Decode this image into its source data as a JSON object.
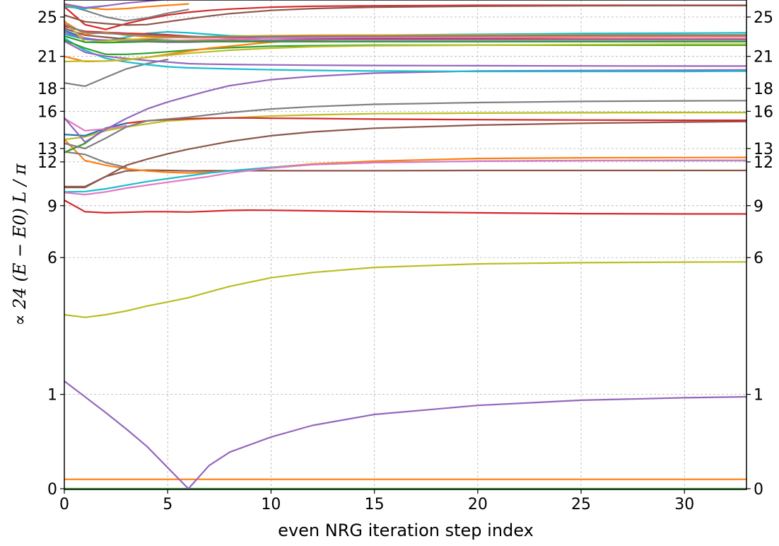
{
  "chart_data": {
    "type": "line",
    "title": "",
    "xlabel": "even NRG iteration step index",
    "ylabel": "∝ 24 (E − E0) L / π",
    "xlim": [
      0,
      33
    ],
    "ylim": [
      -0.1,
      26
    ],
    "grid": true,
    "y_scale": "quadratic (tick spacing ∝ √y)",
    "xticks": [
      "0",
      "5",
      "10",
      "15",
      "20",
      "25",
      "30"
    ],
    "yticks": [
      "0",
      "1",
      "6",
      "9",
      "12",
      "13",
      "16",
      "18",
      "21",
      "25"
    ],
    "series": [
      {
        "color": "#2ca02c",
        "x": [
          0,
          33
        ],
        "y": [
          0,
          0
        ]
      },
      {
        "color": "#ff7f0e",
        "x": [
          0,
          33
        ],
        "y": [
          0.01,
          0.01
        ]
      },
      {
        "color": "#9467bd",
        "x": [
          0,
          1,
          2,
          3,
          4,
          5,
          6,
          7,
          8,
          10,
          12,
          15,
          20,
          25,
          30,
          33
        ],
        "y": [
          1.3,
          0.95,
          0.65,
          0.4,
          0.2,
          0.05,
          0.0,
          0.06,
          0.15,
          0.3,
          0.45,
          0.62,
          0.78,
          0.88,
          0.93,
          0.95
        ]
      },
      {
        "color": "#bcbd22",
        "x": [
          0,
          1,
          2,
          3,
          4,
          5,
          6,
          7,
          8,
          10,
          12,
          15,
          20,
          25,
          30,
          33
        ],
        "y": [
          3.4,
          3.3,
          3.4,
          3.55,
          3.75,
          3.92,
          4.1,
          4.35,
          4.6,
          5.0,
          5.25,
          5.5,
          5.68,
          5.74,
          5.77,
          5.78
        ]
      },
      {
        "color": "#d62728",
        "x": [
          0,
          1,
          2,
          3,
          4,
          5,
          6,
          7,
          8,
          9,
          10,
          12,
          15,
          20,
          25,
          30,
          33
        ],
        "y": [
          9.35,
          8.62,
          8.55,
          8.58,
          8.62,
          8.62,
          8.6,
          8.65,
          8.7,
          8.72,
          8.71,
          8.68,
          8.62,
          8.55,
          8.5,
          8.48,
          8.48
        ]
      },
      {
        "color": "#8c564b",
        "x": [
          0,
          1,
          2,
          3,
          4,
          5,
          6,
          7,
          8,
          10,
          12,
          15,
          20,
          25,
          30,
          33
        ],
        "y": [
          10.25,
          10.25,
          10.95,
          11.35,
          11.4,
          11.38,
          11.35,
          11.36,
          11.36,
          11.36,
          11.36,
          11.36,
          11.38,
          11.38,
          11.38,
          11.38
        ]
      },
      {
        "color": "#ff7f0e",
        "x": [
          0,
          1,
          2,
          3,
          4,
          5,
          6,
          7,
          8,
          10,
          12,
          15,
          20,
          25,
          30,
          33
        ],
        "y": [
          13.7,
          12.1,
          11.75,
          11.5,
          11.35,
          11.25,
          11.2,
          11.25,
          11.35,
          11.6,
          11.85,
          12.05,
          12.25,
          12.3,
          12.32,
          12.33
        ]
      },
      {
        "color": "#7f7f7f",
        "x": [
          0,
          1,
          2,
          3
        ],
        "y": [
          12.75,
          12.55,
          11.95,
          11.6
        ]
      },
      {
        "color": "#bcbd22",
        "x": [
          0,
          1,
          2,
          3,
          4,
          5,
          6,
          7,
          8,
          10,
          12,
          15,
          20,
          25,
          30,
          33
        ],
        "y": [
          13.7,
          13.9,
          14.4,
          14.7,
          14.95,
          15.2,
          15.3,
          15.4,
          15.45,
          15.6,
          15.7,
          15.8,
          15.85,
          15.88,
          15.9,
          15.9
        ]
      },
      {
        "color": "#17becf",
        "x": [
          0,
          1,
          2,
          3,
          4,
          5,
          6,
          7,
          8,
          10,
          12,
          15,
          20,
          25,
          30,
          33
        ],
        "y": [
          9.9,
          9.92,
          10.1,
          10.35,
          10.6,
          10.8,
          11.0,
          11.2,
          11.35,
          11.6,
          11.8,
          11.95,
          12.05,
          12.1,
          12.1,
          12.1
        ]
      },
      {
        "color": "#e377c2",
        "x": [
          0,
          1,
          2,
          3,
          4,
          5,
          6,
          7,
          8,
          10,
          12,
          15,
          20,
          25,
          30,
          33
        ],
        "y": [
          9.85,
          9.72,
          9.9,
          10.15,
          10.35,
          10.55,
          10.75,
          10.95,
          11.2,
          11.55,
          11.8,
          11.95,
          12.05,
          12.1,
          12.12,
          12.12
        ]
      },
      {
        "color": "#8c564b",
        "x": [
          0,
          1,
          2,
          3,
          4,
          5,
          6,
          7,
          8,
          10,
          12,
          15,
          20,
          25,
          30,
          33
        ],
        "y": [
          10.2,
          10.2,
          10.95,
          11.75,
          12.2,
          12.6,
          12.95,
          13.25,
          13.55,
          14.0,
          14.3,
          14.6,
          14.85,
          15.0,
          15.1,
          15.15
        ]
      },
      {
        "color": "#d62728",
        "x": [
          0,
          1,
          2,
          3,
          4,
          5,
          6,
          7,
          8,
          9,
          10,
          12,
          15,
          20,
          25,
          30,
          33
        ],
        "y": [
          12.7,
          13.4,
          14.6,
          15.0,
          15.2,
          15.3,
          15.38,
          15.42,
          15.44,
          15.44,
          15.42,
          15.4,
          15.35,
          15.3,
          15.27,
          15.25,
          15.25
        ]
      },
      {
        "color": "#1f77b4",
        "x": [
          0,
          1,
          2,
          3
        ],
        "y": [
          14.1,
          14.0,
          14.6,
          15.0
        ]
      },
      {
        "color": "#2ca02c",
        "x": [
          0,
          1,
          2
        ],
        "y": [
          12.7,
          13.4,
          14.6
        ]
      },
      {
        "color": "#e377c2",
        "x": [
          0,
          1,
          2,
          3
        ],
        "y": [
          15.4,
          14.4,
          14.55,
          14.8
        ]
      },
      {
        "color": "#9467bd",
        "x": [
          0,
          1,
          2,
          3,
          4,
          5,
          6,
          7,
          8,
          10,
          12,
          15,
          20,
          25,
          30,
          33
        ],
        "y": [
          15.45,
          13.5,
          14.5,
          15.4,
          16.2,
          16.8,
          17.3,
          17.8,
          18.25,
          18.8,
          19.1,
          19.4,
          19.6,
          19.65,
          19.68,
          19.7
        ]
      },
      {
        "color": "#7f7f7f",
        "x": [
          0,
          1,
          2,
          3,
          4,
          5,
          6,
          7,
          8,
          10,
          12,
          15,
          20,
          25,
          30,
          33
        ],
        "y": [
          13.4,
          13.0,
          13.8,
          14.7,
          15.2,
          15.35,
          15.5,
          15.7,
          15.9,
          16.2,
          16.4,
          16.6,
          16.75,
          16.85,
          16.9,
          16.92
        ]
      },
      {
        "color": "#7f7f7f",
        "x": [
          0,
          1,
          2,
          3,
          4,
          5
        ],
        "y": [
          18.5,
          18.2,
          19.0,
          19.8,
          20.3,
          20.7
        ]
      },
      {
        "color": "#17becf",
        "x": [
          0,
          1,
          2,
          3,
          4,
          5,
          6,
          7,
          8,
          10,
          12,
          15,
          20,
          25,
          30,
          33
        ],
        "y": [
          22.8,
          21.6,
          20.8,
          20.45,
          20.2,
          20.0,
          19.9,
          19.85,
          19.8,
          19.72,
          19.66,
          19.6,
          19.56,
          19.56,
          19.56,
          19.58
        ]
      },
      {
        "color": "#9467bd",
        "x": [
          0,
          1,
          2,
          3,
          4,
          5,
          6,
          7,
          8,
          10,
          12,
          15,
          20,
          25,
          30,
          33
        ],
        "y": [
          22.5,
          21.4,
          21.0,
          20.8,
          20.6,
          20.45,
          20.3,
          20.25,
          20.22,
          20.18,
          20.15,
          20.12,
          20.1,
          20.08,
          20.07,
          20.07
        ]
      },
      {
        "color": "#2ca02c",
        "x": [
          0,
          1,
          2,
          3,
          4,
          5,
          6,
          7,
          8,
          10,
          12,
          15,
          20,
          25,
          30,
          33
        ],
        "y": [
          22.6,
          21.8,
          21.2,
          21.2,
          21.3,
          21.45,
          21.6,
          21.75,
          21.85,
          22.0,
          22.05,
          22.1,
          22.1,
          22.1,
          22.1,
          22.1
        ]
      },
      {
        "color": "#ff7f0e",
        "x": [
          0,
          1,
          2,
          3,
          4,
          5,
          6,
          7,
          8,
          10,
          12,
          15,
          20,
          25,
          30,
          33
        ],
        "y": [
          21.0,
          20.5,
          20.55,
          20.65,
          20.9,
          21.2,
          21.5,
          21.8,
          22.0,
          22.4,
          22.6,
          22.75,
          22.85,
          22.9,
          22.92,
          22.93
        ]
      },
      {
        "color": "#bcbd22",
        "x": [
          0,
          1,
          2,
          3,
          4,
          5,
          6,
          7,
          8,
          10,
          12,
          15,
          20,
          25,
          30,
          33
        ],
        "y": [
          20.5,
          20.55,
          20.55,
          20.7,
          20.9,
          21.1,
          21.3,
          21.45,
          21.6,
          21.8,
          21.95,
          22.05,
          22.1,
          22.15,
          22.2,
          22.2
        ]
      },
      {
        "color": "#1f77b4",
        "x": [
          0,
          1,
          2,
          3,
          4,
          5,
          6,
          7,
          8,
          10,
          12,
          15,
          20,
          25,
          30,
          33
        ],
        "y": [
          23.6,
          22.8,
          22.55,
          22.6,
          22.65,
          22.6,
          22.55,
          22.5,
          22.48,
          22.45,
          22.45,
          22.45,
          22.45,
          22.45,
          22.45,
          22.45
        ]
      },
      {
        "color": "#17becf",
        "x": [
          0,
          1,
          2,
          3,
          4,
          5,
          6,
          7,
          8,
          10,
          12,
          15,
          20,
          25,
          30,
          33
        ],
        "y": [
          23.2,
          22.7,
          22.5,
          22.9,
          23.3,
          23.45,
          23.35,
          23.2,
          23.05,
          22.95,
          23.0,
          23.1,
          23.2,
          23.28,
          23.32,
          23.35
        ]
      },
      {
        "color": "#8c564b",
        "x": [
          0,
          1,
          2,
          3,
          4,
          5,
          6,
          7,
          8,
          10,
          12,
          15,
          20,
          25,
          30,
          33
        ],
        "y": [
          23.8,
          23.1,
          22.9,
          22.7,
          22.6,
          22.55,
          22.55,
          22.6,
          22.65,
          22.8,
          22.9,
          22.95,
          23.0,
          23.05,
          23.05,
          23.05
        ]
      },
      {
        "color": "#d62728",
        "x": [
          0,
          1,
          2,
          3,
          4,
          5,
          6,
          7,
          8,
          10,
          12,
          15,
          20,
          25,
          30,
          33
        ],
        "y": [
          24.0,
          23.5,
          23.4,
          23.3,
          23.25,
          23.15,
          23.0,
          22.9,
          22.85,
          22.8,
          22.78,
          22.75,
          22.72,
          22.7,
          22.7,
          22.7
        ]
      },
      {
        "color": "#e377c2",
        "x": [
          0,
          1,
          2,
          3,
          4,
          5,
          6,
          7,
          8,
          10,
          12,
          15,
          20,
          25,
          30,
          33
        ],
        "y": [
          24.3,
          22.7,
          22.6,
          22.55,
          22.5,
          22.55,
          22.6,
          22.65,
          22.7,
          22.8,
          22.85,
          22.9,
          22.92,
          22.95,
          22.95,
          22.95
        ]
      },
      {
        "color": "#9467bd",
        "x": [
          0,
          1,
          2,
          3,
          4,
          5,
          6,
          7,
          8,
          10,
          12,
          15,
          20,
          25,
          30,
          33
        ],
        "y": [
          23.4,
          22.7,
          22.6,
          22.5,
          22.45,
          22.4,
          22.4,
          22.45,
          22.5,
          22.6,
          22.65,
          22.65,
          22.65,
          22.65,
          22.65,
          22.65
        ]
      },
      {
        "color": "#bcbd22",
        "x": [
          0,
          1,
          2,
          3,
          4,
          5,
          6,
          7,
          8,
          10,
          12,
          15,
          20,
          25,
          30,
          33
        ],
        "y": [
          24.6,
          22.4,
          22.5,
          22.65,
          22.75,
          22.85,
          22.9,
          22.95,
          23.0,
          23.05,
          23.1,
          23.12,
          23.15,
          23.15,
          23.15,
          23.15
        ]
      },
      {
        "color": "#ff7f0e",
        "x": [
          0,
          1,
          2,
          3,
          4,
          5,
          6,
          7,
          8,
          10,
          12,
          15,
          20,
          25,
          30,
          33
        ],
        "y": [
          24.5,
          23.2,
          23.4,
          23.1,
          22.95,
          22.9,
          22.85,
          22.85,
          22.9,
          23.0,
          23.05,
          23.05,
          23.05,
          23.05,
          23.05,
          23.05
        ]
      },
      {
        "color": "#7f7f7f",
        "x": [
          0,
          1,
          2,
          3,
          4,
          5,
          6,
          7,
          8,
          10,
          12,
          15,
          20,
          25,
          30,
          33
        ],
        "y": [
          24.2,
          23.4,
          23.3,
          23.2,
          23.1,
          23.0,
          22.95,
          22.95,
          22.95,
          22.95,
          22.98,
          23.0,
          23.05,
          23.1,
          23.12,
          23.12
        ]
      },
      {
        "color": "#2ca02c",
        "x": [
          0,
          1,
          2,
          3,
          4,
          5,
          6,
          7,
          8,
          10,
          12,
          15,
          20,
          25,
          30,
          33
        ],
        "y": [
          23.0,
          22.4,
          22.35,
          22.4,
          22.45,
          22.45,
          22.45,
          22.45,
          22.45,
          22.45,
          22.45,
          22.45,
          22.45,
          22.45,
          22.45,
          22.45
        ]
      },
      {
        "color": "#d62728",
        "x": [
          0,
          1,
          2,
          3,
          4,
          5,
          6,
          7,
          8,
          10,
          12,
          15,
          20,
          25,
          30,
          33
        ],
        "y": [
          26.1,
          24.2,
          23.7,
          24.3,
          24.8,
          25.2,
          25.5,
          25.7,
          25.85,
          26.05,
          26.15,
          26.2,
          26.25,
          26.25,
          26.25,
          26.25
        ]
      },
      {
        "color": "#8c564b",
        "x": [
          0,
          1,
          2,
          3,
          4,
          5,
          6,
          7,
          8,
          10,
          12,
          15,
          20,
          25,
          30,
          33
        ],
        "y": [
          25.2,
          24.5,
          24.3,
          24.15,
          24.2,
          24.5,
          24.8,
          25.1,
          25.35,
          25.7,
          25.9,
          26.05,
          26.15,
          26.2,
          26.22,
          26.22
        ]
      },
      {
        "color": "#7f7f7f",
        "x": [
          0,
          1,
          2,
          3,
          4,
          5,
          6
        ],
        "y": [
          26.3,
          25.7,
          25.0,
          24.6,
          24.9,
          25.4,
          25.8
        ]
      },
      {
        "color": "#ff7f0e",
        "x": [
          0,
          1,
          2,
          3,
          4,
          5,
          6
        ],
        "y": [
          26.2,
          26.0,
          25.8,
          25.9,
          26.1,
          26.25,
          26.4
        ]
      },
      {
        "color": "#17becf",
        "x": [
          0,
          1,
          2
        ],
        "y": [
          26.1,
          25.9,
          26.2
        ]
      },
      {
        "color": "#9467bd",
        "x": [
          0,
          1,
          2,
          3,
          4,
          5
        ],
        "y": [
          26.4,
          26.0,
          26.2,
          26.5,
          26.7,
          26.9
        ]
      }
    ]
  }
}
